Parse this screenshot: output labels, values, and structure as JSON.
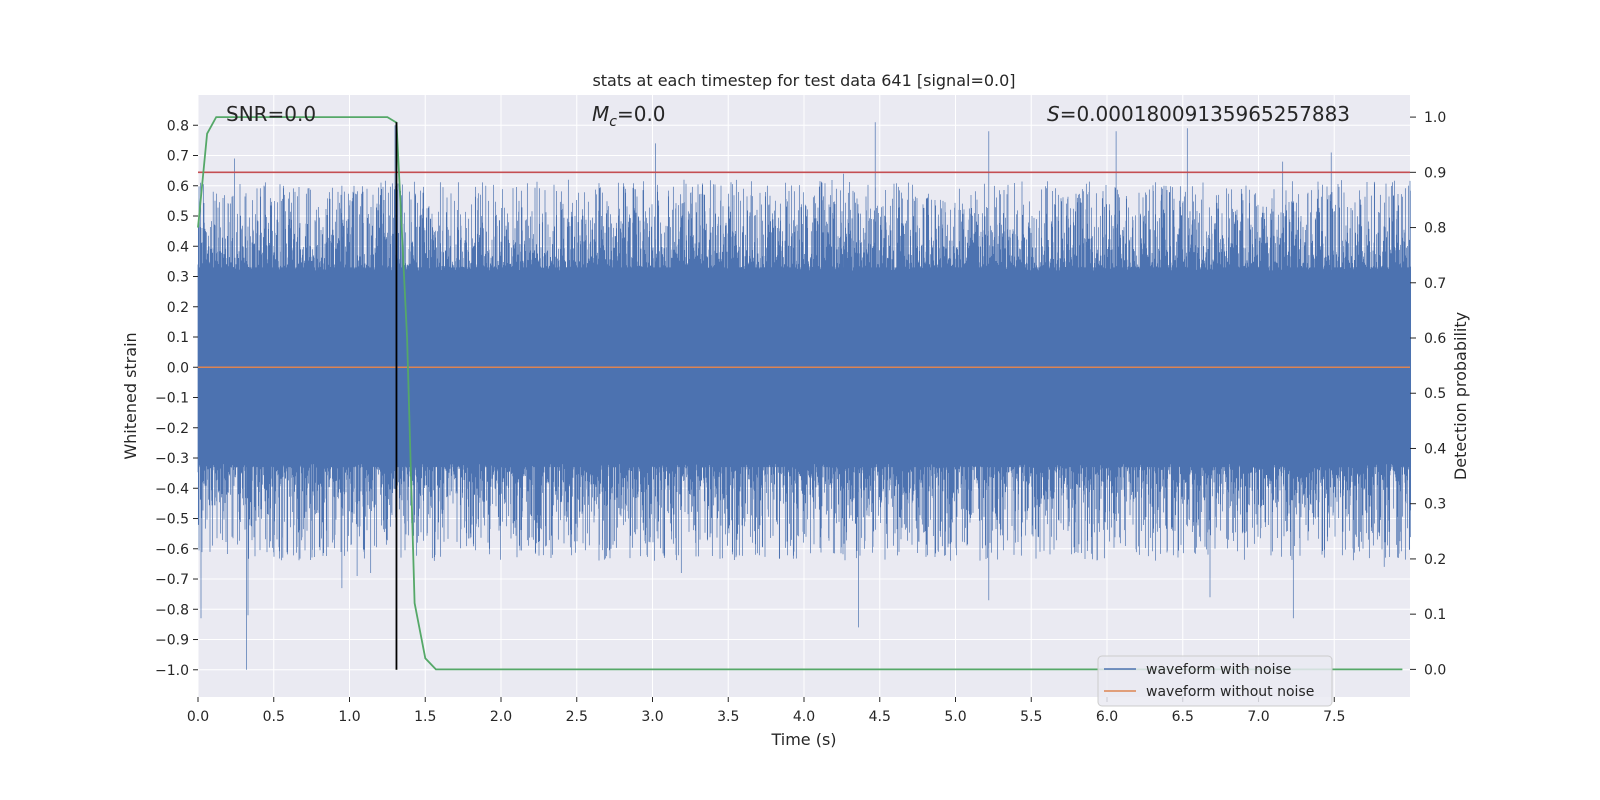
{
  "chart_data": {
    "type": "line",
    "title": "stats at each timestep for test data 641 [signal=0.0]",
    "xlabel": "Time (s)",
    "ylabel": "Whitened strain",
    "y2label": "Detection probability",
    "xlim": [
      0.0,
      8.0
    ],
    "ylim": [
      -1.09,
      0.9
    ],
    "y2lim": [
      -0.05,
      1.04
    ],
    "xticks": [
      0.0,
      0.5,
      1.0,
      1.5,
      2.0,
      2.5,
      3.0,
      3.5,
      4.0,
      4.5,
      5.0,
      5.5,
      6.0,
      6.5,
      7.0,
      7.5
    ],
    "xtick_labels": [
      "0.0",
      "0.5",
      "1.0",
      "1.5",
      "2.0",
      "2.5",
      "3.0",
      "3.5",
      "4.0",
      "4.5",
      "5.0",
      "5.5",
      "6.0",
      "6.5",
      "7.0",
      "7.5"
    ],
    "yticks": [
      0.8,
      0.7,
      0.6,
      0.5,
      0.4,
      0.3,
      0.2,
      0.1,
      0.0,
      -0.1,
      -0.2,
      -0.3,
      -0.4,
      -0.5,
      -0.6,
      -0.7,
      -0.8,
      -0.9,
      -1.0
    ],
    "ytick_labels": [
      "0.8",
      "0.7",
      "0.6",
      "0.5",
      "0.4",
      "0.3",
      "0.2",
      "0.1",
      "0.0",
      "−0.1",
      "−0.2",
      "−0.3",
      "−0.4",
      "−0.5",
      "−0.6",
      "−0.7",
      "−0.8",
      "−0.9",
      "−1.0"
    ],
    "y2ticks": [
      1.0,
      0.9,
      0.8,
      0.7,
      0.6,
      0.5,
      0.4,
      0.3,
      0.2,
      0.1,
      0.0
    ],
    "y2tick_labels": [
      "1.0",
      "0.9",
      "0.8",
      "0.7",
      "0.6",
      "0.5",
      "0.4",
      "0.3",
      "0.2",
      "0.1",
      "0.0"
    ],
    "grid": true,
    "legend_position": "bottom-right",
    "annotations": [
      {
        "id": "snr",
        "text": "SNR=0.0"
      },
      {
        "id": "mc",
        "text_main": "M",
        "text_sub": "c",
        "text_rest": "=0.0"
      },
      {
        "id": "s",
        "text_italic": "S",
        "text_rest": "=0.00018009135965257883"
      }
    ],
    "series": [
      {
        "name": "waveform with noise",
        "color": "#4c72b0",
        "axis": "left",
        "kind": "noise",
        "typical_envelope": [
          -0.33,
          0.33
        ],
        "spikes": [
          [
            0.02,
            -0.83
          ],
          [
            0.05,
            0.45
          ],
          [
            0.1,
            0.58
          ],
          [
            0.2,
            0.54
          ],
          [
            0.24,
            0.69
          ],
          [
            0.32,
            -1.0
          ],
          [
            0.33,
            -0.82
          ],
          [
            0.55,
            0.55
          ],
          [
            0.56,
            -0.63
          ],
          [
            0.95,
            0.6
          ],
          [
            0.95,
            -0.73
          ],
          [
            1.05,
            -0.69
          ],
          [
            1.14,
            -0.68
          ],
          [
            1.3,
            0.8
          ],
          [
            1.56,
            -0.64
          ],
          [
            1.9,
            0.6
          ],
          [
            2.67,
            -0.57
          ],
          [
            3.02,
            0.74
          ],
          [
            3.19,
            -0.68
          ],
          [
            4.26,
            0.64
          ],
          [
            4.36,
            -0.86
          ],
          [
            4.47,
            0.81
          ],
          [
            4.59,
            -0.59
          ],
          [
            5.22,
            0.78
          ],
          [
            5.22,
            -0.77
          ],
          [
            6.06,
            0.78
          ],
          [
            6.53,
            0.79
          ],
          [
            6.68,
            -0.76
          ],
          [
            7.16,
            0.68
          ],
          [
            7.23,
            -0.83
          ],
          [
            7.48,
            0.71
          ],
          [
            7.83,
            -0.66
          ]
        ]
      },
      {
        "name": "waveform without noise",
        "color": "#dd8452",
        "axis": "left",
        "values_constant": 0.0
      },
      {
        "name": "detection probability",
        "color": "#55a868",
        "axis": "right",
        "x": [
          0.0,
          0.06,
          0.12,
          0.2,
          0.4,
          0.6,
          0.8,
          1.0,
          1.2,
          1.25,
          1.31,
          1.38,
          1.43,
          1.5,
          1.57,
          1.7,
          2.0,
          3.0,
          4.0,
          5.0,
          6.0,
          7.0,
          7.95
        ],
        "y": [
          0.8,
          0.97,
          1.0,
          1.0,
          1.0,
          1.0,
          1.0,
          1.0,
          1.0,
          1.0,
          0.99,
          0.6,
          0.12,
          0.02,
          0.0,
          0.0,
          0.0,
          0.0,
          0.0,
          0.0,
          0.0,
          0.0,
          0.0
        ]
      },
      {
        "name": "threshold",
        "color": "#c44e52",
        "axis": "right",
        "values_constant": 0.9
      },
      {
        "name": "detection time",
        "color": "#000000",
        "axis": "left",
        "vertical_at_x": 1.31,
        "y_range": [
          -1.0,
          0.81
        ]
      }
    ],
    "legend": [
      "waveform with noise",
      "waveform without noise"
    ]
  },
  "colors": {
    "plot_bg": "#eaeaf2",
    "grid": "#ffffff",
    "noise": "#4c72b0",
    "clean": "#dd8452",
    "prob": "#55a868",
    "threshold": "#c44e52",
    "vline": "#000000"
  }
}
